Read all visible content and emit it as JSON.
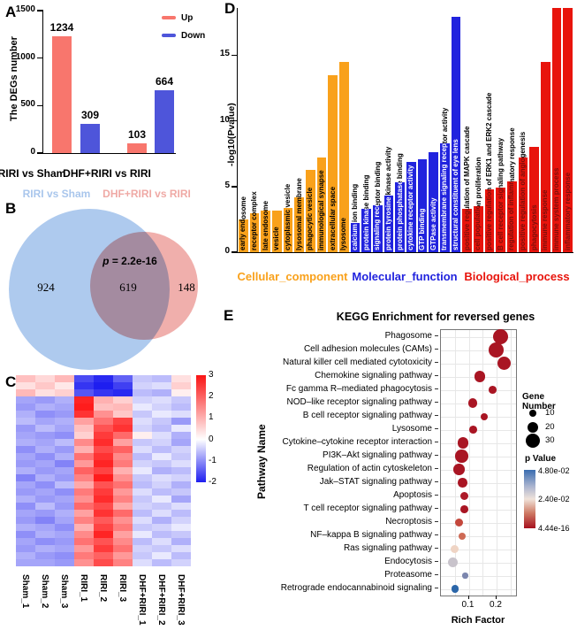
{
  "panel_labels": [
    "A",
    "B",
    "C",
    "D",
    "E"
  ],
  "chart_data": [
    {
      "id": "A",
      "type": "bar",
      "ylabel": "The DEGs number",
      "ylim": [
        0,
        1500
      ],
      "yticks": [
        0,
        500,
        1000,
        1500
      ],
      "categories": [
        "RIRI vs Sham",
        "DHF+RIRI vs RIRI"
      ],
      "series": [
        {
          "name": "Up",
          "color": "#F8766D",
          "values": [
            1234,
            103
          ]
        },
        {
          "name": "Down",
          "color": "#4E55DA",
          "values": [
            309,
            664
          ]
        }
      ]
    },
    {
      "id": "B",
      "type": "venn",
      "sets": [
        {
          "label": "RIRI vs Sham",
          "unique": 924,
          "color": "#AECAEE",
          "label_color": "#A9C6EC"
        },
        {
          "label": "DHF+RIRI vs RIRI",
          "unique": 148,
          "color": "#F0AFAC",
          "label_color": "#EFA9A5"
        }
      ],
      "overlap": 619,
      "p_value": "p = 2.2e-16"
    },
    {
      "id": "C",
      "type": "heatmap",
      "columns": [
        "Sham_1",
        "Sham_2",
        "Sham_3",
        "RIRI_1",
        "RIRI_2",
        "RIRI_3",
        "DHF+RIRI_1",
        "DHF+RIRI_2",
        "DHF+RIRI_3"
      ],
      "colorbar_ticks": [
        3,
        2,
        1,
        0,
        -1,
        -2
      ],
      "value_range": [
        -2,
        3
      ],
      "rows": [
        [
          0.8,
          0.5,
          0.9,
          -1.6,
          -1.9,
          -1.4,
          -0.5,
          -0.6,
          0.4
        ],
        [
          0.4,
          0.7,
          0.3,
          -1.8,
          -2.0,
          -1.7,
          -0.4,
          -0.3,
          0.6
        ],
        [
          0.9,
          0.4,
          0.6,
          -1.5,
          -1.8,
          -1.9,
          -0.6,
          -0.7,
          0.2
        ],
        [
          -0.8,
          -0.9,
          -0.7,
          2.8,
          1.0,
          0.6,
          -0.4,
          -0.3,
          -0.5
        ],
        [
          -0.9,
          -0.7,
          -0.8,
          2.9,
          0.8,
          0.9,
          -0.2,
          -0.4,
          -0.6
        ],
        [
          -0.7,
          -1.0,
          -0.9,
          2.6,
          1.4,
          0.7,
          -0.5,
          -0.2,
          -0.3
        ],
        [
          -0.6,
          -0.8,
          -0.7,
          1.2,
          1.8,
          2.4,
          -0.3,
          -0.5,
          -0.9
        ],
        [
          -0.9,
          -0.6,
          -0.8,
          0.8,
          2.2,
          2.6,
          -0.4,
          -0.6,
          -0.2
        ],
        [
          -0.8,
          -0.9,
          -1.0,
          0.6,
          2.5,
          1.9,
          0.2,
          -0.3,
          -0.7
        ],
        [
          -0.7,
          -0.8,
          -0.6,
          1.5,
          2.7,
          1.2,
          -0.5,
          -0.4,
          -0.8
        ],
        [
          -1.0,
          -0.7,
          -0.9,
          1.0,
          2.3,
          2.0,
          -0.3,
          -0.6,
          -0.4
        ],
        [
          -0.8,
          -1.0,
          -0.7,
          1.8,
          2.6,
          1.5,
          -0.6,
          -0.2,
          -0.5
        ],
        [
          -0.9,
          -0.8,
          -1.1,
          1.3,
          2.8,
          1.7,
          -0.4,
          -0.5,
          -0.3
        ],
        [
          -0.7,
          -0.9,
          -0.8,
          2.0,
          2.4,
          1.0,
          -0.2,
          -0.7,
          -0.6
        ],
        [
          -1.1,
          -0.7,
          -0.9,
          1.6,
          2.9,
          1.4,
          -0.5,
          -0.3,
          -0.4
        ],
        [
          -0.8,
          -1.0,
          -0.6,
          1.1,
          2.2,
          1.8,
          -0.6,
          -0.4,
          -0.7
        ],
        [
          -0.9,
          -0.8,
          -1.0,
          1.7,
          2.5,
          1.3,
          -0.3,
          -0.6,
          -0.5
        ],
        [
          -0.7,
          -0.9,
          -0.8,
          1.4,
          2.7,
          1.6,
          -0.5,
          -0.2,
          -0.8
        ],
        [
          -1.0,
          -0.6,
          -0.9,
          1.9,
          2.3,
          1.1,
          -0.4,
          -0.5,
          -0.3
        ],
        [
          -0.8,
          -0.9,
          -0.7,
          1.2,
          2.6,
          1.9,
          -0.6,
          -0.3,
          -0.6
        ],
        [
          -0.9,
          -1.1,
          -0.8,
          1.6,
          2.1,
          1.4,
          -0.3,
          -0.7,
          -0.4
        ],
        [
          -0.7,
          -0.8,
          -1.0,
          1.0,
          2.4,
          1.7,
          -0.5,
          -0.4,
          -0.2
        ],
        [
          -1.0,
          -0.7,
          -0.8,
          1.5,
          2.8,
          1.2,
          -0.2,
          -0.6,
          -0.5
        ],
        [
          -0.8,
          -1.0,
          -0.9,
          1.8,
          2.2,
          1.5,
          -0.6,
          -0.3,
          -0.7
        ],
        [
          -0.9,
          -0.7,
          -0.8,
          1.3,
          2.5,
          1.8,
          -0.4,
          -0.5,
          -0.3
        ],
        [
          -0.7,
          -0.9,
          -1.0,
          1.7,
          2.0,
          1.3,
          -0.5,
          -0.2,
          -0.6
        ],
        [
          -0.8,
          -0.8,
          -0.9,
          1.4,
          2.3,
          1.6,
          -0.3,
          -0.6,
          -0.4
        ]
      ]
    },
    {
      "id": "D",
      "type": "bar",
      "ylabel": "-log10(Pvalue)",
      "yticks": [
        0,
        5,
        10,
        15
      ],
      "ymax": 18.6,
      "groups": [
        {
          "key": "cc",
          "label": "Cellular_component",
          "color": "#F9A11B"
        },
        {
          "key": "mf",
          "label": "Molecular_function",
          "color": "#2123DE"
        },
        {
          "key": "bp",
          "label": "Biological_process",
          "color": "#E8140C"
        }
      ],
      "bars": [
        {
          "term": "early endosome",
          "value": 2.5,
          "group": "cc"
        },
        {
          "term": "receptor complex",
          "value": 3.0,
          "group": "cc"
        },
        {
          "term": "late endosome",
          "value": 3.2,
          "group": "cc"
        },
        {
          "term": "vesicle",
          "value": 3.2,
          "group": "cc"
        },
        {
          "term": "cytoplasmic vesicle",
          "value": 3.4,
          "group": "cc"
        },
        {
          "term": "lysosomal membrane",
          "value": 4.2,
          "group": "cc"
        },
        {
          "term": "phagocytic vesicle",
          "value": 6.3,
          "group": "cc"
        },
        {
          "term": "immunological synapse",
          "value": 7.2,
          "group": "cc"
        },
        {
          "term": "extracellular space",
          "value": 13.5,
          "group": "cc"
        },
        {
          "term": "lysosome",
          "value": 14.5,
          "group": "cc"
        },
        {
          "term": "calcium ion binding",
          "value": 2.2,
          "group": "mf"
        },
        {
          "term": "protein kinase binding",
          "value": 3.3,
          "group": "mf"
        },
        {
          "term": "signaling receptor binding",
          "value": 3.6,
          "group": "mf"
        },
        {
          "term": "protein tyrosine kinase activity",
          "value": 4.3,
          "group": "mf"
        },
        {
          "term": "protein phosphatase binding",
          "value": 5.3,
          "group": "mf"
        },
        {
          "term": "cytokine receptor activity",
          "value": 6.9,
          "group": "mf"
        },
        {
          "term": "GTP binding",
          "value": 7.1,
          "group": "mf"
        },
        {
          "term": "GTPase activity",
          "value": 7.6,
          "group": "mf"
        },
        {
          "term": "transmembrane signaling receptor activity",
          "value": 8.3,
          "group": "mf"
        },
        {
          "term": "structural constituent of eye lens",
          "value": 17.9,
          "group": "mf"
        },
        {
          "term": "positive regulation of MAPK cascade",
          "value": 3.3,
          "group": "bp"
        },
        {
          "term": "cell population proliferation",
          "value": 3.5,
          "group": "bp"
        },
        {
          "term": "positive regulation of ERK1 and ERK2 cascade",
          "value": 4.8,
          "group": "bp"
        },
        {
          "term": "B cell receptor signaling pathway",
          "value": 4.9,
          "group": "bp"
        },
        {
          "term": "regulation of inflammatory response",
          "value": 5.4,
          "group": "bp"
        },
        {
          "term": "positive regulation of angiogenesis",
          "value": 7.2,
          "group": "bp"
        },
        {
          "term": "phagocytosis",
          "value": 8.0,
          "group": "bp"
        },
        {
          "term": "immune response",
          "value": 14.5,
          "group": "bp"
        },
        {
          "term": "immune system process",
          "value": 18.6,
          "group": "bp"
        },
        {
          "term": "inflammatory response",
          "value": 18.6,
          "group": "bp"
        }
      ]
    },
    {
      "id": "E",
      "type": "scatter",
      "title": "KEGG Enrichment for reversed genes",
      "xlabel": "Rich Factor",
      "ylabel": "Pathway Name",
      "xlim": [
        0,
        0.27
      ],
      "xticks": [
        0.1,
        0.2
      ],
      "size_legend": {
        "title": "Gene Number",
        "values": [
          10,
          20,
          30
        ]
      },
      "color_legend": {
        "title": "p Value",
        "ticks": [
          "4.80e-02",
          "2.40e-02",
          "4.44e-16"
        ],
        "top_color": "#3A6DB0",
        "mid_color": "#F0E3DA",
        "bottom_color": "#A6101E"
      },
      "pathways": [
        {
          "name": "Phagosome",
          "rich_factor": 0.215,
          "gene_number": 33,
          "color": "#A91523"
        },
        {
          "name": "Cell adhesion molecules (CAMs)",
          "rich_factor": 0.198,
          "gene_number": 32,
          "color": "#A91523"
        },
        {
          "name": "Natural killer cell mediated cytotoxicity",
          "rich_factor": 0.228,
          "gene_number": 28,
          "color": "#A91523"
        },
        {
          "name": "Chemokine signaling pathway",
          "rich_factor": 0.14,
          "gene_number": 21,
          "color": "#A91523"
        },
        {
          "name": "Fc gamma R–mediated phagocytosis",
          "rich_factor": 0.185,
          "gene_number": 12,
          "color": "#A91523"
        },
        {
          "name": "NOD–like receptor signaling pathway",
          "rich_factor": 0.115,
          "gene_number": 16,
          "color": "#A91523"
        },
        {
          "name": "B cell receptor signaling pathway",
          "rich_factor": 0.155,
          "gene_number": 10,
          "color": "#A91523"
        },
        {
          "name": "Lysosome",
          "rich_factor": 0.115,
          "gene_number": 12,
          "color": "#A91523"
        },
        {
          "name": "Cytokine–cytokine receptor interaction",
          "rich_factor": 0.08,
          "gene_number": 21,
          "color": "#A91523"
        },
        {
          "name": "PI3K–Akt signaling pathway",
          "rich_factor": 0.075,
          "gene_number": 26,
          "color": "#A91523"
        },
        {
          "name": "Regulation of actin cytoskeleton",
          "rich_factor": 0.065,
          "gene_number": 21,
          "color": "#A91523"
        },
        {
          "name": "Jak–STAT signaling pathway",
          "rich_factor": 0.078,
          "gene_number": 16,
          "color": "#A91523"
        },
        {
          "name": "Apoptosis",
          "rich_factor": 0.084,
          "gene_number": 14,
          "color": "#AD1A28"
        },
        {
          "name": "T cell receptor signaling pathway",
          "rich_factor": 0.085,
          "gene_number": 12,
          "color": "#A91523"
        },
        {
          "name": "Necroptosis",
          "rich_factor": 0.065,
          "gene_number": 14,
          "color": "#C4473C"
        },
        {
          "name": "NF–kappa B signaling pathway",
          "rich_factor": 0.077,
          "gene_number": 10,
          "color": "#CE6A55"
        },
        {
          "name": "Ras signaling pathway",
          "rich_factor": 0.05,
          "gene_number": 14,
          "color": "#EFD4C4"
        },
        {
          "name": "Endocytosis",
          "rich_factor": 0.042,
          "gene_number": 18,
          "color": "#C8C3CB"
        },
        {
          "name": "Proteasome",
          "rich_factor": 0.087,
          "gene_number": 6,
          "color": "#7C86AE"
        },
        {
          "name": "Retrograde endocannabinoid signaling",
          "rich_factor": 0.05,
          "gene_number": 11,
          "color": "#2B66A9"
        }
      ]
    }
  ]
}
